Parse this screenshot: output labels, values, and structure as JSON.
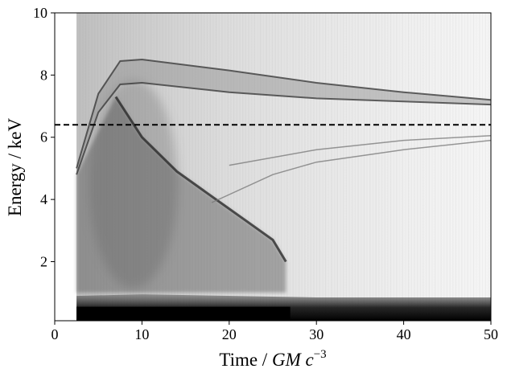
{
  "chart_data": {
    "type": "heatmap",
    "title": "",
    "xlabel": "Time / ",
    "xlabel_math": "GM c",
    "xlabel_exponent": "−3",
    "ylabel": "Energy / keV",
    "xlim": [
      0,
      50
    ],
    "ylim": [
      0.1,
      10
    ],
    "x_ticks": [
      0,
      10,
      20,
      30,
      40,
      50
    ],
    "y_ticks": [
      2,
      4,
      6,
      8,
      10
    ],
    "grid": false,
    "colormap": "greys",
    "reference_lines": [
      {
        "orientation": "horizontal",
        "y": 6.4,
        "style": "dashed",
        "color": "#000000"
      }
    ],
    "emission_onset_time": 2.5,
    "features": [
      {
        "kind": "blue-wing-upper",
        "points": [
          [
            2.5,
            5.0
          ],
          [
            5.0,
            7.4
          ],
          [
            7.5,
            8.45
          ],
          [
            10,
            8.5
          ],
          [
            20,
            8.15
          ],
          [
            30,
            7.75
          ],
          [
            40,
            7.45
          ],
          [
            50,
            7.2
          ]
        ]
      },
      {
        "kind": "blue-wing-lower",
        "points": [
          [
            2.5,
            4.8
          ],
          [
            5.0,
            6.8
          ],
          [
            7.5,
            7.7
          ],
          [
            10,
            7.75
          ],
          [
            20,
            7.45
          ],
          [
            30,
            7.25
          ],
          [
            40,
            7.15
          ],
          [
            50,
            7.05
          ]
        ]
      },
      {
        "kind": "decaying-arc",
        "points": [
          [
            7.0,
            7.3
          ],
          [
            10,
            6.0
          ],
          [
            14,
            4.9
          ],
          [
            18,
            4.1
          ],
          [
            22,
            3.3
          ],
          [
            25,
            2.7
          ],
          [
            26.5,
            2.0
          ]
        ]
      },
      {
        "kind": "rising-arc-1",
        "points": [
          [
            18,
            3.9
          ],
          [
            25,
            4.8
          ],
          [
            30,
            5.2
          ],
          [
            40,
            5.6
          ],
          [
            50,
            5.9
          ]
        ]
      },
      {
        "kind": "rising-arc-2",
        "points": [
          [
            20,
            5.1
          ],
          [
            30,
            5.6
          ],
          [
            40,
            5.9
          ],
          [
            50,
            6.05
          ]
        ]
      },
      {
        "kind": "low-energy-band",
        "points": [
          [
            2.5,
            0.9
          ],
          [
            10,
            0.95
          ],
          [
            30,
            0.85
          ],
          [
            50,
            0.85
          ]
        ]
      }
    ],
    "colors": {
      "dashed_line": "#000000",
      "axes": "#000000",
      "background": "#ffffff"
    }
  }
}
